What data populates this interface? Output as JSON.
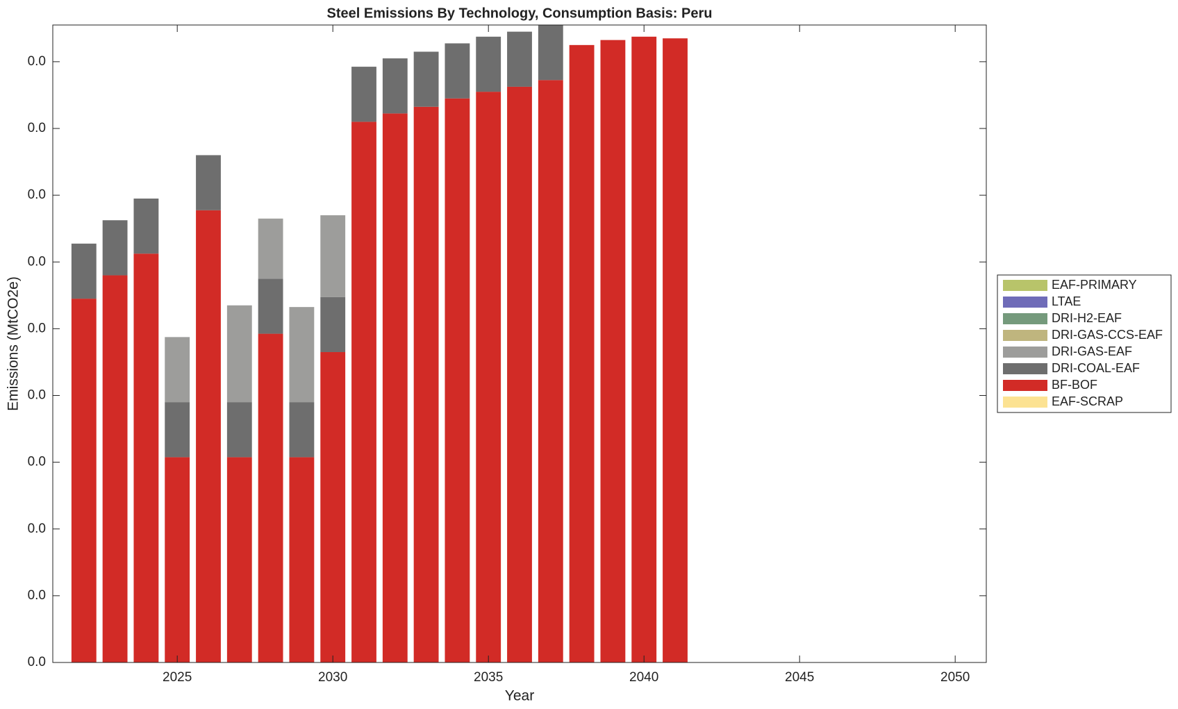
{
  "chart_data": {
    "type": "stacked-bar",
    "title": "Steel Emissions By Technology, Consumption Basis: Peru",
    "xlabel": "Year",
    "ylabel": "Emissions (MtCO2e)",
    "x": [
      2022,
      2023,
      2024,
      2025,
      2026,
      2027,
      2028,
      2029,
      2030,
      2031,
      2032,
      2033,
      2034,
      2035,
      2036,
      2037,
      2038,
      2039,
      2040,
      2041
    ],
    "series": [
      {
        "name": "EAF-PRIMARY",
        "color": "#b8c46a",
        "values": [
          0,
          0,
          0,
          0,
          0,
          0,
          0,
          0,
          0,
          0,
          0,
          0,
          0,
          0,
          0,
          0,
          0,
          0,
          0,
          0
        ]
      },
      {
        "name": "LTAE",
        "color": "#6f6cb8",
        "values": [
          0,
          0,
          0,
          0,
          0,
          0,
          0,
          0,
          0,
          0,
          0,
          0,
          0,
          0,
          0,
          0,
          0,
          0,
          0,
          0
        ]
      },
      {
        "name": "DRI-H2-EAF",
        "color": "#759a7c",
        "values": [
          0,
          0,
          0,
          0,
          0,
          0,
          0,
          0,
          0,
          0,
          0,
          0,
          0,
          0,
          0,
          0,
          0,
          0,
          0,
          0
        ]
      },
      {
        "name": "DRI-GAS-CCS-EAF",
        "color": "#bfb57e",
        "values": [
          0,
          0,
          0,
          0,
          0,
          0,
          0,
          0,
          0,
          0,
          0,
          0,
          0,
          0,
          0,
          0,
          0,
          0,
          0,
          0
        ]
      },
      {
        "name": "DRI-GAS-EAF",
        "color": "#9d9d9b",
        "values": [
          0,
          0,
          0,
          0.0039,
          0,
          0.0058,
          0.0036,
          0.0057,
          0.0049,
          0,
          0,
          0,
          0,
          0,
          0,
          0,
          0,
          0,
          0,
          0
        ]
      },
      {
        "name": "DRI-COAL-EAF",
        "color": "#6e6e6e",
        "values": [
          0.0033,
          0.0033,
          0.0033,
          0.0033,
          0.0033,
          0.0033,
          0.0033,
          0.0033,
          0.0033,
          0.0033,
          0.0033,
          0.0033,
          0.0033,
          0.0033,
          0.0033,
          0.0033,
          0,
          0,
          0,
          0
        ]
      },
      {
        "name": "BF-BOF",
        "color": "#d22b26",
        "values": [
          0.0218,
          0.0232,
          0.0245,
          0.0123,
          0.0271,
          0.0123,
          0.0197,
          0.0123,
          0.0186,
          0.0324,
          0.0329,
          0.0333,
          0.0338,
          0.0342,
          0.0345,
          0.0349,
          0.037,
          0.0373,
          0.0375,
          0.0374
        ]
      },
      {
        "name": "EAF-SCRAP",
        "color": "#fce292",
        "values": [
          0,
          0,
          0,
          0,
          0,
          0,
          0,
          0,
          0,
          0,
          0,
          0,
          0,
          0,
          0,
          0,
          0,
          0,
          0,
          0
        ]
      }
    ],
    "xlim": [
      2021,
      2051
    ],
    "xticks": [
      2025,
      2030,
      2035,
      2040,
      2045,
      2050
    ],
    "ylim": [
      0,
      0.0382
    ],
    "yticks": [
      {
        "value": 0,
        "label": "0.0"
      },
      {
        "value": 0.004,
        "label": "0.0"
      },
      {
        "value": 0.008,
        "label": "0.0"
      },
      {
        "value": 0.012,
        "label": "0.0"
      },
      {
        "value": 0.016,
        "label": "0.0"
      },
      {
        "value": 0.02,
        "label": "0.0"
      },
      {
        "value": 0.024,
        "label": "0.0"
      },
      {
        "value": 0.028,
        "label": "0.0"
      },
      {
        "value": 0.032,
        "label": "0.0"
      },
      {
        "value": 0.036,
        "label": "0.0"
      }
    ],
    "legend": "right"
  }
}
